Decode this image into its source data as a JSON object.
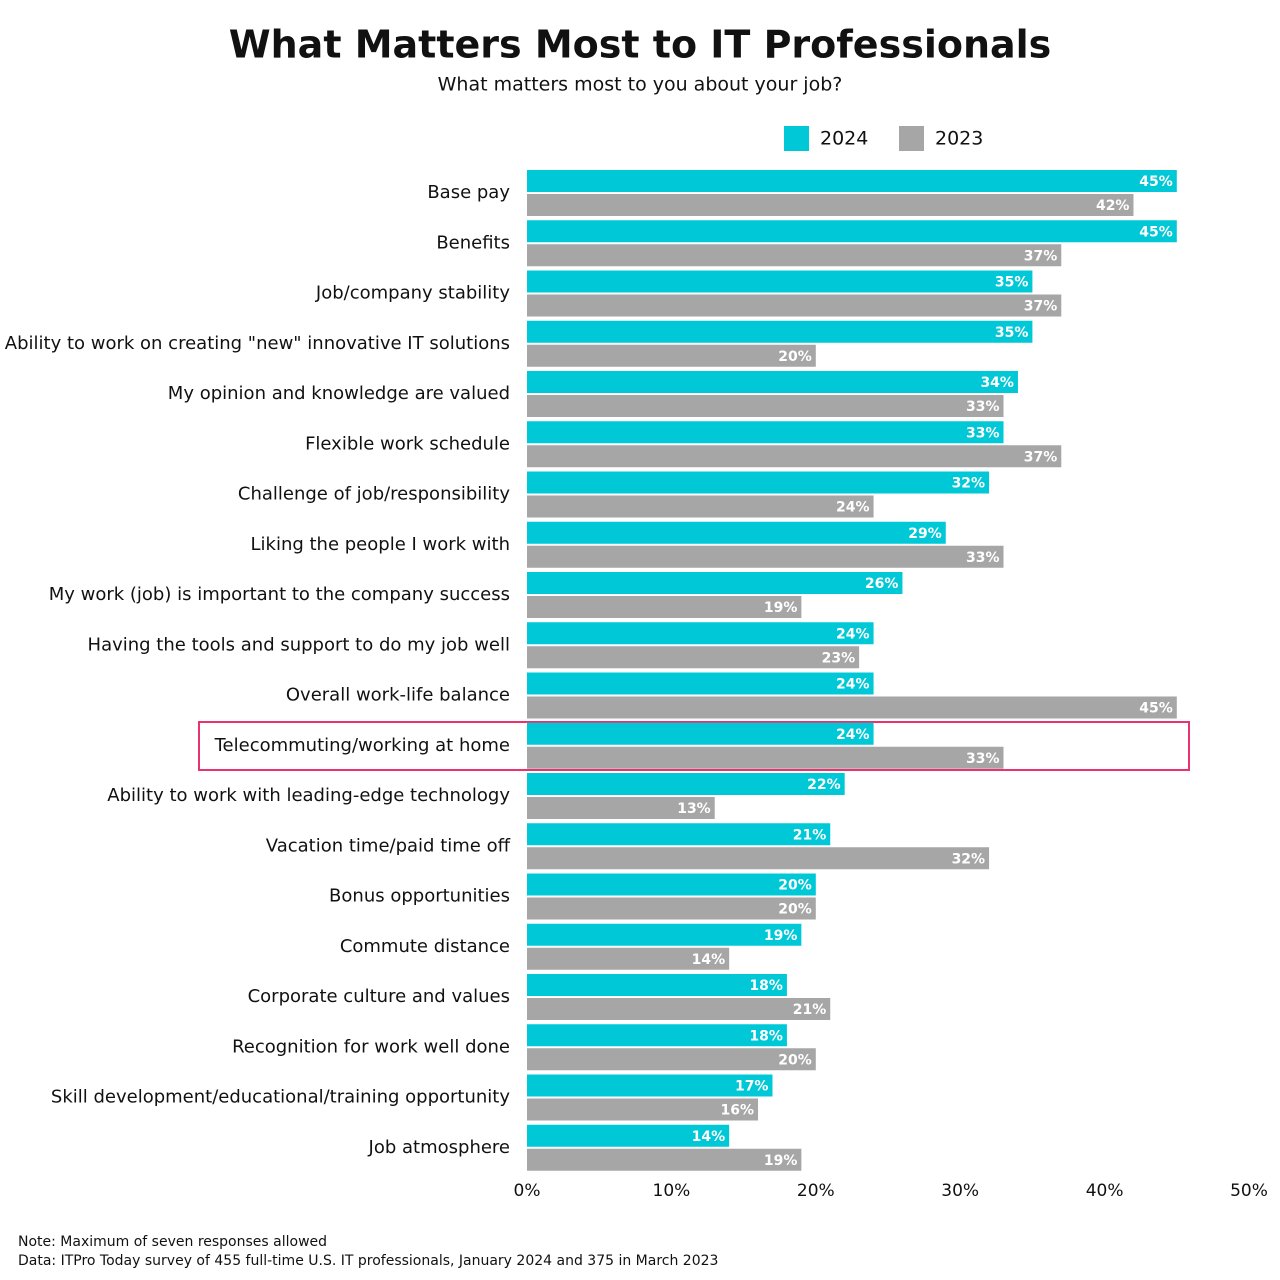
{
  "chart_data": {
    "type": "hbar",
    "title": "What Matters Most to IT Professionals",
    "subtitle": "What matters most to you about your job?",
    "categories": [
      "Base pay",
      "Benefits",
      "Job/company stability",
      "Ability to work on creating \"new\" innovative IT solutions",
      "My opinion and knowledge are valued",
      "Flexible work schedule",
      "Challenge of job/responsibility",
      "Liking the people I work with",
      "My work (job) is important to the company success",
      "Having the tools and support to do my job well",
      "Overall work-life balance",
      "Telecommuting/working at home",
      "Ability to work with leading-edge technology",
      "Vacation time/paid time off",
      "Bonus opportunities",
      "Commute distance",
      "Corporate culture and values",
      "Recognition for work well done",
      "Skill development/educational/training opportunity",
      "Job atmosphere"
    ],
    "series": [
      {
        "name": "2024",
        "color": "#00c8d7",
        "values": [
          45,
          45,
          35,
          35,
          34,
          33,
          32,
          29,
          26,
          24,
          24,
          24,
          22,
          21,
          20,
          19,
          18,
          18,
          17,
          14
        ],
        "value_labels": [
          "45%",
          "45%",
          "35%",
          "35%",
          "34%",
          "33%",
          "32%",
          "29%",
          "26%",
          "24%",
          "24%",
          "24%",
          "22%",
          "21%",
          "20%",
          "19%",
          "18%",
          "18%",
          "17%",
          "14%"
        ]
      },
      {
        "name": "2023",
        "color": "#a6a6a6",
        "values": [
          42,
          37,
          37,
          20,
          33,
          37,
          24,
          33,
          19,
          23,
          45,
          33,
          13,
          32,
          20,
          14,
          21,
          20,
          16,
          19
        ],
        "value_labels": [
          "42%",
          "37%",
          "37%",
          "20%",
          "33%",
          "37%",
          "24%",
          "33%",
          "19%",
          "23%",
          "45%",
          "33%",
          "13%",
          "32%",
          "20%",
          "14%",
          "21%",
          "20%",
          "16%",
          "19%"
        ]
      }
    ],
    "xlim": [
      0,
      50
    ],
    "xticks": [
      {
        "value": 0,
        "label": "0%"
      },
      {
        "value": 10,
        "label": "10%"
      },
      {
        "value": 20,
        "label": "20%"
      },
      {
        "value": 30,
        "label": "30%"
      },
      {
        "value": 40,
        "label": "40%"
      },
      {
        "value": 50,
        "label": "50%"
      }
    ],
    "legend": "top",
    "notes": [
      "Note: Maximum of seven responses allowed",
      "Data: ITPro Today survey of 455 full-time U.S. IT professionals, January 2024 and 375 in March 2023"
    ]
  }
}
